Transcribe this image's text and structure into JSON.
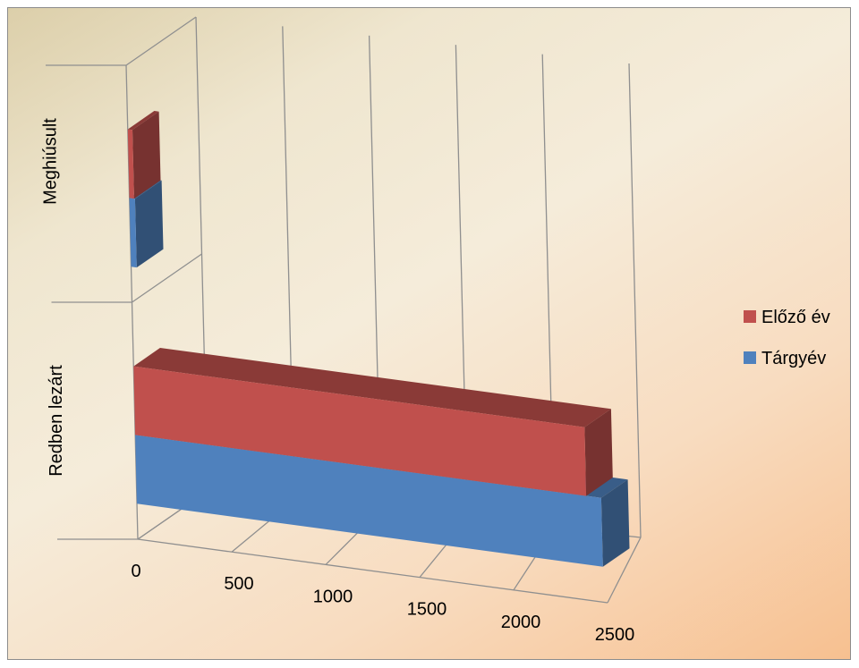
{
  "chart_data": {
    "type": "bar",
    "orientation": "horizontal",
    "style": "3d-stacked-depth",
    "categories": [
      "Meghiúsult",
      "Redben lezárt"
    ],
    "series": [
      {
        "name": "Előző év",
        "values": [
          25,
          2400
        ],
        "color": "#c0504d"
      },
      {
        "name": "Tárgyév",
        "values": [
          30,
          2480
        ],
        "color": "#4f81bd"
      }
    ],
    "x_ticks": [
      "0",
      "500",
      "1000",
      "1500",
      "2000",
      "2500"
    ],
    "xlim": [
      0,
      2500
    ],
    "title": "",
    "xlabel": "",
    "ylabel": "",
    "grid": true,
    "legend_position": "right"
  }
}
